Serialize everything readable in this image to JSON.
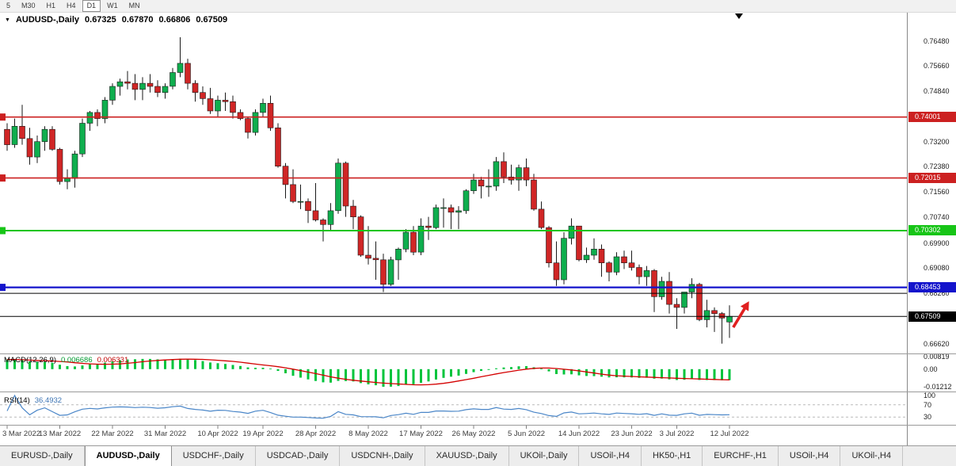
{
  "toolbar": {
    "timeframes": [
      {
        "label": "5",
        "active": false
      },
      {
        "label": "M30",
        "active": false
      },
      {
        "label": "H1",
        "active": false
      },
      {
        "label": "H4",
        "active": false
      },
      {
        "label": "D1",
        "active": true
      },
      {
        "label": "W1",
        "active": false
      },
      {
        "label": "MN",
        "active": false
      }
    ]
  },
  "chart_title": {
    "marker": "▼",
    "symbol": "AUDUSD-,Daily",
    "open": "0.67325",
    "high": "0.67870",
    "low": "0.66806",
    "close": "0.67509"
  },
  "indicators": {
    "macd": {
      "name": "MACD(12,26,9)",
      "value_main": "0.006686",
      "value_signal": "0.006331",
      "scale": [
        "0.00819",
        "0.00",
        "-0.01212"
      ],
      "color_main": "#00c43c",
      "color_signal": "#d40000"
    },
    "rsi": {
      "name": "RSI(14)",
      "value": "36.4932",
      "scale": [
        "100",
        "70",
        "30"
      ],
      "levels": [
        70,
        30
      ],
      "color": "#4a86c8"
    }
  },
  "price_scale": [
    "0.76480",
    "0.75660",
    "0.74840",
    "0.73200",
    "0.72380",
    "0.71560",
    "0.70740",
    "0.69900",
    "0.69080",
    "0.68260",
    "0.66620"
  ],
  "time_scale": [
    [
      "3 Mar 2022",
      0
    ],
    [
      "13 Mar 2022",
      7
    ],
    [
      "22 Mar 2022",
      14
    ],
    [
      "31 Mar 2022",
      21
    ],
    [
      "10 Apr 2022",
      28
    ],
    [
      "19 Apr 2022",
      34
    ],
    [
      "28 Apr 2022",
      41
    ],
    [
      "8 May 2022",
      48
    ],
    [
      "17 May 2022",
      55
    ],
    [
      "26 May 2022",
      62
    ],
    [
      "5 Jun 2022",
      69
    ],
    [
      "14 Jun 2022",
      76
    ],
    [
      "23 Jun 2022",
      83
    ],
    [
      "3 Jul 2022",
      89
    ],
    [
      "12 Jul 2022",
      96
    ]
  ],
  "chart_data": {
    "type": "candlestick",
    "symbol": "AUDUSD",
    "timeframe": "Daily",
    "ohlc_current": {
      "open": 0.67325,
      "high": 0.6787,
      "low": 0.66806,
      "close": 0.67509
    },
    "ylim": [
      0.663,
      0.774
    ],
    "colors": {
      "bull": "#0fae4e",
      "bear": "#d02626",
      "wick": "#1a1a1a"
    },
    "levels": [
      {
        "price": 0.74001,
        "label": "0.74001",
        "color": "#cc2020",
        "width": 1.6,
        "badge": true,
        "tag": true
      },
      {
        "price": 0.72015,
        "label": "0.72015",
        "color": "#cc2020",
        "width": 1.6,
        "badge": true,
        "tag": true
      },
      {
        "price": 0.70302,
        "label": "0.70302",
        "color": "#17c517",
        "width": 2,
        "badge": true,
        "tag": true
      },
      {
        "price": 0.68453,
        "label": "0.68453",
        "color": "#1414cc",
        "width": 2.2,
        "badge": true,
        "tag": true
      },
      {
        "price": 0.6826,
        "label": "",
        "color": "#000000",
        "width": 1,
        "badge": false,
        "tag": false
      },
      {
        "price": 0.67509,
        "label": "0.67509",
        "color": "#000000",
        "width": 1,
        "badge": true,
        "tag": false
      }
    ],
    "arrow": {
      "i1": 96.5,
      "p1": 0.6715,
      "i2": 98.6,
      "p2": 0.68,
      "color": "#e02020"
    },
    "candles": [
      [
        0.736,
        0.738,
        0.729,
        0.731
      ],
      [
        0.731,
        0.7395,
        0.73,
        0.737
      ],
      [
        0.737,
        0.744,
        0.731,
        0.733
      ],
      [
        0.733,
        0.7365,
        0.7245,
        0.727
      ],
      [
        0.727,
        0.734,
        0.725,
        0.732
      ],
      [
        0.732,
        0.737,
        0.729,
        0.736
      ],
      [
        0.736,
        0.737,
        0.729,
        0.7295
      ],
      [
        0.7295,
        0.73,
        0.718,
        0.719
      ],
      [
        0.719,
        0.723,
        0.7165,
        0.72
      ],
      [
        0.72,
        0.729,
        0.717,
        0.728
      ],
      [
        0.728,
        0.7395,
        0.727,
        0.738
      ],
      [
        0.738,
        0.742,
        0.7355,
        0.7415
      ],
      [
        0.7415,
        0.7425,
        0.737,
        0.7395
      ],
      [
        0.7395,
        0.7465,
        0.738,
        0.7455
      ],
      [
        0.7455,
        0.751,
        0.744,
        0.75
      ],
      [
        0.75,
        0.7525,
        0.747,
        0.7515
      ],
      [
        0.7515,
        0.755,
        0.749,
        0.751
      ],
      [
        0.751,
        0.754,
        0.7455,
        0.749
      ],
      [
        0.749,
        0.753,
        0.7455,
        0.751
      ],
      [
        0.751,
        0.754,
        0.748,
        0.75
      ],
      [
        0.75,
        0.752,
        0.7465,
        0.748
      ],
      [
        0.748,
        0.751,
        0.746,
        0.75
      ],
      [
        0.75,
        0.756,
        0.749,
        0.7545
      ],
      [
        0.7545,
        0.766,
        0.753,
        0.7575
      ],
      [
        0.7575,
        0.759,
        0.749,
        0.751
      ],
      [
        0.751,
        0.752,
        0.745,
        0.748
      ],
      [
        0.748,
        0.75,
        0.744,
        0.746
      ],
      [
        0.746,
        0.7495,
        0.741,
        0.742
      ],
      [
        0.742,
        0.747,
        0.74,
        0.7455
      ],
      [
        0.7455,
        0.748,
        0.742,
        0.745
      ],
      [
        0.745,
        0.747,
        0.7395,
        0.7415
      ],
      [
        0.7415,
        0.7425,
        0.739,
        0.7395
      ],
      [
        0.7395,
        0.74,
        0.733,
        0.735
      ],
      [
        0.735,
        0.7425,
        0.734,
        0.7415
      ],
      [
        0.7415,
        0.746,
        0.74,
        0.7445
      ],
      [
        0.7445,
        0.747,
        0.7355,
        0.7365
      ],
      [
        0.7365,
        0.738,
        0.7235,
        0.724
      ],
      [
        0.724,
        0.725,
        0.7135,
        0.718
      ],
      [
        0.718,
        0.723,
        0.712,
        0.7125
      ],
      [
        0.7125,
        0.718,
        0.71,
        0.7125
      ],
      [
        0.7125,
        0.7135,
        0.7055,
        0.7095
      ],
      [
        0.7095,
        0.7185,
        0.706,
        0.7065
      ],
      [
        0.7065,
        0.707,
        0.6995,
        0.705
      ],
      [
        0.705,
        0.712,
        0.703,
        0.7095
      ],
      [
        0.7095,
        0.7265,
        0.7085,
        0.725
      ],
      [
        0.725,
        0.7255,
        0.7075,
        0.711
      ],
      [
        0.711,
        0.713,
        0.7035,
        0.7075
      ],
      [
        0.7075,
        0.708,
        0.6945,
        0.695
      ],
      [
        0.695,
        0.7045,
        0.692,
        0.694
      ],
      [
        0.694,
        0.6995,
        0.687,
        0.6935
      ],
      [
        0.6935,
        0.6955,
        0.683,
        0.6855
      ],
      [
        0.6855,
        0.6945,
        0.685,
        0.6935
      ],
      [
        0.6935,
        0.6975,
        0.687,
        0.697
      ],
      [
        0.697,
        0.7035,
        0.696,
        0.7025
      ],
      [
        0.7025,
        0.7045,
        0.695,
        0.696
      ],
      [
        0.696,
        0.707,
        0.695,
        0.7045
      ],
      [
        0.7045,
        0.7075,
        0.7,
        0.704
      ],
      [
        0.704,
        0.7115,
        0.7035,
        0.7105
      ],
      [
        0.7105,
        0.7135,
        0.704,
        0.7105
      ],
      [
        0.7105,
        0.7115,
        0.7035,
        0.709
      ],
      [
        0.709,
        0.711,
        0.7035,
        0.7095
      ],
      [
        0.7095,
        0.7165,
        0.7085,
        0.716
      ],
      [
        0.716,
        0.7215,
        0.715,
        0.7195
      ],
      [
        0.7195,
        0.7205,
        0.7135,
        0.7175
      ],
      [
        0.7175,
        0.723,
        0.714,
        0.7175
      ],
      [
        0.7175,
        0.727,
        0.716,
        0.7255
      ],
      [
        0.7255,
        0.7285,
        0.7185,
        0.7205
      ],
      [
        0.7205,
        0.7245,
        0.718,
        0.7195
      ],
      [
        0.7195,
        0.7245,
        0.716,
        0.7235
      ],
      [
        0.7235,
        0.7265,
        0.7175,
        0.7195
      ],
      [
        0.7195,
        0.7215,
        0.7095,
        0.71
      ],
      [
        0.71,
        0.7125,
        0.7035,
        0.704
      ],
      [
        0.704,
        0.7045,
        0.691,
        0.6925
      ],
      [
        0.6925,
        0.6995,
        0.685,
        0.687
      ],
      [
        0.687,
        0.7025,
        0.6855,
        0.7005
      ],
      [
        0.7005,
        0.707,
        0.6985,
        0.7045
      ],
      [
        0.7045,
        0.7045,
        0.693,
        0.6935
      ],
      [
        0.6935,
        0.6975,
        0.6925,
        0.695
      ],
      [
        0.695,
        0.7005,
        0.6935,
        0.697
      ],
      [
        0.697,
        0.6985,
        0.688,
        0.6925
      ],
      [
        0.6925,
        0.693,
        0.6865,
        0.6895
      ],
      [
        0.6895,
        0.696,
        0.6885,
        0.6945
      ],
      [
        0.6945,
        0.6965,
        0.6905,
        0.6925
      ],
      [
        0.6925,
        0.6965,
        0.69,
        0.691
      ],
      [
        0.691,
        0.692,
        0.6855,
        0.688
      ],
      [
        0.688,
        0.6915,
        0.685,
        0.69
      ],
      [
        0.69,
        0.6905,
        0.6765,
        0.6815
      ],
      [
        0.6815,
        0.688,
        0.6805,
        0.6865
      ],
      [
        0.6865,
        0.6895,
        0.676,
        0.679
      ],
      [
        0.679,
        0.681,
        0.671,
        0.678
      ],
      [
        0.678,
        0.683,
        0.676,
        0.683
      ],
      [
        0.683,
        0.6875,
        0.681,
        0.6855
      ],
      [
        0.6855,
        0.686,
        0.6735,
        0.674
      ],
      [
        0.674,
        0.6805,
        0.6715,
        0.677
      ],
      [
        0.677,
        0.678,
        0.67,
        0.676
      ],
      [
        0.676,
        0.6765,
        0.6662,
        0.6745
      ],
      [
        0.67325,
        0.6787,
        0.66806,
        0.67509
      ]
    ]
  },
  "tabs": [
    {
      "label": "EURUSD-,Daily",
      "active": false
    },
    {
      "label": "AUDUSD-,Daily",
      "active": true
    },
    {
      "label": "USDCHF-,Daily",
      "active": false
    },
    {
      "label": "USDCAD-,Daily",
      "active": false
    },
    {
      "label": "USDCNH-,Daily",
      "active": false
    },
    {
      "label": "XAUUSD-,Daily",
      "active": false
    },
    {
      "label": "UKOil-,Daily",
      "active": false
    },
    {
      "label": "USOil-,H4",
      "active": false
    },
    {
      "label": "HK50-,H1",
      "active": false
    },
    {
      "label": "EURCHF-,H1",
      "active": false
    },
    {
      "label": "USOil-,H4",
      "active": false
    },
    {
      "label": "UKOil-,H4",
      "active": false
    }
  ]
}
